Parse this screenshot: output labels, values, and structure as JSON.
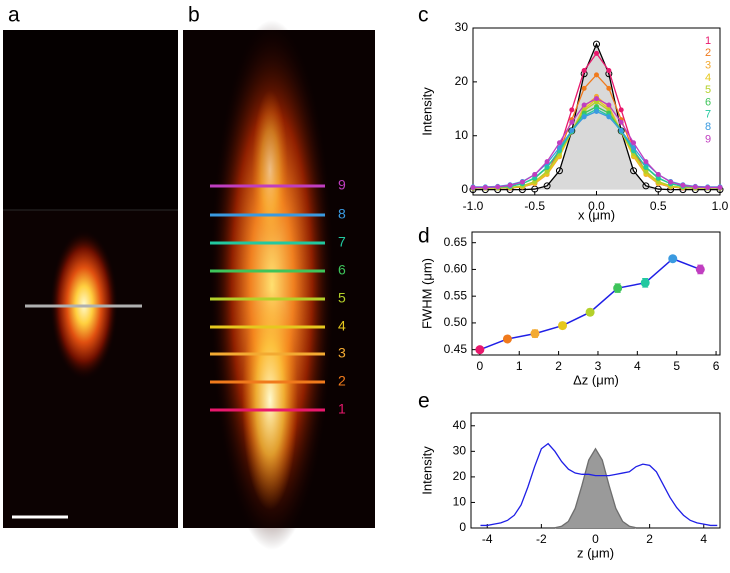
{
  "panel_labels": [
    "a",
    "b",
    "c",
    "d",
    "e"
  ],
  "chart_data": [
    {
      "type": "line",
      "xlabel": "x (μm)",
      "ylabel": "Intensity",
      "xlim": [
        -1,
        1
      ],
      "ylim": [
        -1,
        30
      ],
      "xticks": [
        {
          "value": -1,
          "label": "-1.0"
        },
        -0.5,
        {
          "value": 0,
          "label": "0.0"
        },
        0.5,
        {
          "value": 1,
          "label": "1.0"
        }
      ],
      "yticks": [
        0,
        10,
        20,
        30
      ],
      "legend": "top-right",
      "x": [
        -1,
        -0.9,
        -0.8,
        -0.7,
        -0.6,
        -0.5,
        -0.4,
        -0.3,
        -0.2,
        -0.1,
        0,
        0.1,
        0.2,
        0.3,
        0.4,
        0.5,
        0.6,
        0.7,
        0.8,
        0.9,
        1
      ],
      "series": [
        {
          "color": "#000000",
          "fill": "#d9d9d9",
          "marker": "open",
          "values": [
            0,
            0,
            0,
            0,
            0,
            0.1,
            0.7,
            3.5,
            10.9,
            21.5,
            27,
            21.5,
            10.9,
            3.5,
            0.7,
            0.1,
            0,
            0,
            0,
            0,
            0
          ]
        },
        {
          "name": "1",
          "color": "#e8186c",
          "marker": "dot",
          "values": [
            0.3,
            0.3,
            0.3,
            0.3,
            0.5,
            1.1,
            3.1,
            7.6,
            14.8,
            22.1,
            25.3,
            22.1,
            14.8,
            7.6,
            3.1,
            1.1,
            0.5,
            0.3,
            0.3,
            0.3,
            0.3
          ]
        },
        {
          "name": "2",
          "color": "#f07a1c",
          "marker": "dot",
          "values": [
            0.3,
            0.3,
            0.3,
            0.3,
            0.5,
            1.2,
            3.1,
            7.1,
            13.0,
            18.8,
            21.3,
            18.8,
            13.0,
            7.1,
            3.1,
            1.2,
            0.5,
            0.3,
            0.3,
            0.3,
            0.3
          ]
        },
        {
          "name": "3",
          "color": "#f3aa32",
          "marker": "dot",
          "values": [
            0.3,
            0.3,
            0.3,
            0.4,
            0.5,
            1.1,
            2.8,
            6.1,
            10.8,
            15.4,
            17.3,
            15.4,
            10.8,
            6.1,
            2.8,
            1.1,
            0.5,
            0.4,
            0.3,
            0.3,
            0.3
          ]
        },
        {
          "name": "4",
          "color": "#e6c81e",
          "marker": "dot",
          "values": [
            0.3,
            0.3,
            0.3,
            0.4,
            0.6,
            1.3,
            3.0,
            6.3,
            10.8,
            15.0,
            16.8,
            15.0,
            10.8,
            6.3,
            3.0,
            1.3,
            0.6,
            0.4,
            0.3,
            0.3,
            0.3
          ]
        },
        {
          "name": "5",
          "color": "#b4d02a",
          "marker": "dot",
          "values": [
            0.3,
            0.3,
            0.3,
            0.4,
            0.7,
            1.5,
            3.4,
            6.7,
            10.9,
            14.7,
            16.3,
            14.7,
            10.9,
            6.7,
            3.4,
            1.5,
            0.7,
            0.4,
            0.3,
            0.3,
            0.3
          ]
        },
        {
          "name": "6",
          "color": "#3ec45a",
          "marker": "dot",
          "values": [
            0.4,
            0.4,
            0.5,
            0.6,
            1.1,
            2.1,
            4.1,
            7.3,
            11.0,
            14.2,
            15.4,
            14.2,
            11.0,
            7.3,
            4.1,
            2.1,
            1.1,
            0.6,
            0.5,
            0.4,
            0.4
          ]
        },
        {
          "name": "7",
          "color": "#22c8a0",
          "marker": "dot",
          "values": [
            0.4,
            0.4,
            0.5,
            0.6,
            1.1,
            2.2,
            4.2,
            7.2,
            10.8,
            13.7,
            14.9,
            13.7,
            10.8,
            7.2,
            4.2,
            2.2,
            1.1,
            0.6,
            0.5,
            0.4,
            0.4
          ]
        },
        {
          "name": "8",
          "color": "#3a9ae0",
          "marker": "dot",
          "values": [
            0.5,
            0.5,
            0.6,
            0.9,
            1.5,
            2.8,
            4.9,
            7.8,
            11.0,
            13.5,
            14.5,
            13.5,
            11.0,
            7.8,
            4.9,
            2.8,
            1.5,
            0.9,
            0.6,
            0.5,
            0.5
          ]
        },
        {
          "name": "9",
          "color": "#c03ec0",
          "marker": "dot",
          "values": [
            0.4,
            0.4,
            0.5,
            0.8,
            1.4,
            2.8,
            5.2,
            8.7,
            12.5,
            15.7,
            16.9,
            15.7,
            12.5,
            8.7,
            5.2,
            2.8,
            1.4,
            0.8,
            0.5,
            0.4,
            0.4
          ]
        }
      ]
    },
    {
      "type": "errorline",
      "xlabel": "Δz (μm)",
      "ylabel": "FWHM (μm)",
      "xlim": [
        -0.2,
        6.1
      ],
      "ylim": [
        0.44,
        0.67
      ],
      "xticks": [
        0,
        1,
        2,
        3,
        4,
        5,
        6
      ],
      "yticks": [
        0.45,
        {
          "value": 0.5,
          "label": "0.50"
        },
        0.55,
        {
          "value": 0.6,
          "label": "0.60"
        },
        0.65
      ],
      "x": [
        0,
        0.7,
        1.4,
        2.1,
        2.8,
        3.5,
        4.2,
        4.9,
        5.6
      ],
      "values": [
        0.45,
        0.47,
        0.48,
        0.495,
        0.52,
        0.565,
        0.575,
        0.62,
        0.6
      ],
      "errors": [
        0.004,
        0.005,
        0.007,
        0.006,
        0.006,
        0.008,
        0.008,
        0.004,
        0.008
      ],
      "color": "#1f1fe6",
      "point_colors": [
        "#e8186c",
        "#f07a1c",
        "#f3aa32",
        "#e6c81e",
        "#b4d02a",
        "#3ec45a",
        "#22c8a0",
        "#3a9ae0",
        "#c03ec0"
      ]
    },
    {
      "type": "line",
      "xlabel": "z (μm)",
      "ylabel": "Intensity",
      "xlim": [
        -4.6,
        4.6
      ],
      "ylim": [
        0,
        45
      ],
      "xticks": [
        -4,
        -2,
        0,
        2,
        4
      ],
      "yticks": [
        0,
        10,
        20,
        30,
        40
      ],
      "series": [
        {
          "color": "#6e6e6e",
          "fill": "#9a9a9a",
          "x": [
            -1.5,
            -1.25,
            -1,
            -0.75,
            -0.5,
            -0.25,
            0,
            0.25,
            0.5,
            0.75,
            1,
            1.25,
            1.5
          ],
          "values": [
            0.1,
            0.7,
            2.6,
            7.7,
            16.7,
            26.6,
            31,
            26.6,
            16.7,
            7.7,
            2.6,
            0.7,
            0.1
          ]
        },
        {
          "color": "#1f1fe6",
          "x": [
            -4.25,
            -4,
            -3.75,
            -3.5,
            -3.25,
            -3,
            -2.75,
            -2.5,
            -2.25,
            -2,
            -1.75,
            -1.5,
            -1.25,
            -1,
            -0.75,
            -0.5,
            -0.25,
            0,
            0.25,
            0.5,
            0.75,
            1,
            1.25,
            1.5,
            1.75,
            2,
            2.25,
            2.5,
            2.75,
            3,
            3.25,
            3.5,
            3.75,
            4,
            4.25,
            4.5
          ],
          "values": [
            1,
            1,
            1.5,
            2,
            3,
            5,
            9,
            16,
            24,
            31,
            33,
            30,
            26,
            23,
            21.5,
            21,
            21,
            20.5,
            20.5,
            20.5,
            21,
            21.5,
            22,
            24,
            25,
            24.5,
            22,
            17,
            12,
            8,
            5,
            3,
            2,
            1.5,
            1,
            1
          ]
        }
      ]
    }
  ]
}
